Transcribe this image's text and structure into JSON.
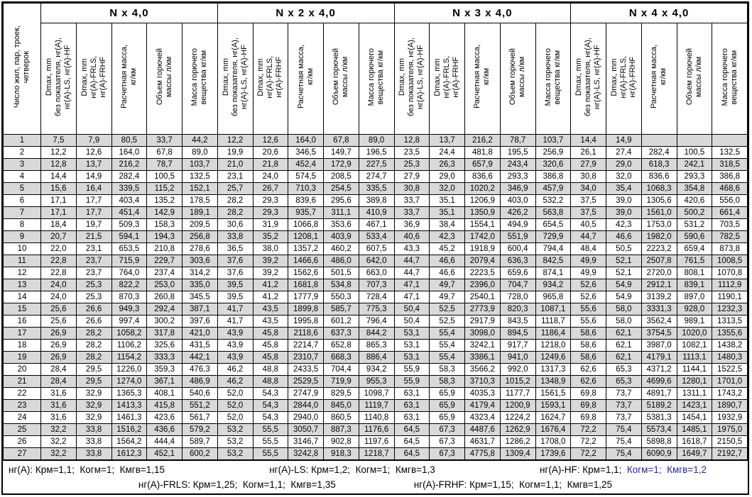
{
  "table": {
    "row_axis_label": "Число жил, пар, троек,\nчетверок",
    "groups": [
      "N x 4,0",
      "N x 2 x 4,0",
      "N x 3 x 4,0",
      "N x 4 x 4,0"
    ],
    "subcolumns": [
      "Dmax, mm\nбез показателя, нг(A),\nнг(A)-LS, нг(A)-HF",
      "Dmax, mm\nнг(A)-FRLS,\nнг(A)-FRHF",
      "Расчетная масса,\nкг/км",
      "Объем горючей\nмассы л/км",
      "Масса горючего\nвещества кг/км"
    ],
    "rows": [
      {
        "n": "1",
        "values": [
          "7,5",
          "7,9",
          "80,5",
          "33,7",
          "44,2",
          "12,2",
          "12,6",
          "164,0",
          "67,8",
          "89,0",
          "12,8",
          "13,7",
          "216,2",
          "78,7",
          "103,7",
          "14,4",
          "14,9",
          "",
          "",
          ""
        ]
      },
      {
        "n": "2",
        "values": [
          "12,2",
          "12,6",
          "164,0",
          "67,8",
          "89,0",
          "19,9",
          "20,6",
          "346,5",
          "149,7",
          "196,5",
          "23,5",
          "24,4",
          "481,8",
          "195,5",
          "256,9",
          "26,1",
          "27,4",
          "282,4",
          "100,5",
          "132,5"
        ]
      },
      {
        "n": "3",
        "values": [
          "12,8",
          "13,7",
          "216,2",
          "78,7",
          "103,7",
          "21,0",
          "21,8",
          "452,4",
          "172,9",
          "227,5",
          "25,3",
          "26,3",
          "657,9",
          "243,4",
          "320,6",
          "27,9",
          "29,0",
          "618,3",
          "242,1",
          "318,5"
        ]
      },
      {
        "n": "4",
        "values": [
          "14,4",
          "14,9",
          "282,4",
          "100,5",
          "132,5",
          "23,1",
          "24,0",
          "574,5",
          "208,5",
          "274,7",
          "27,9",
          "29,0",
          "836,6",
          "293,3",
          "386,8",
          "30,8",
          "32,0",
          "836,6",
          "293,3",
          "386,8"
        ]
      },
      {
        "n": "5",
        "values": [
          "15,6",
          "16,4",
          "339,5",
          "115,2",
          "152,1",
          "25,7",
          "26,7",
          "710,3",
          "254,5",
          "335,5",
          "30,8",
          "32,0",
          "1020,2",
          "346,9",
          "457,9",
          "34,0",
          "35,4",
          "1068,3",
          "354,8",
          "468,6"
        ]
      },
      {
        "n": "6",
        "values": [
          "17,1",
          "17,7",
          "403,4",
          "135,2",
          "178,5",
          "28,2",
          "29,3",
          "839,6",
          "295,6",
          "389,8",
          "33,7",
          "35,1",
          "1206,9",
          "403,0",
          "532,2",
          "37,5",
          "39,0",
          "1305,6",
          "420,6",
          "556,0"
        ]
      },
      {
        "n": "7",
        "values": [
          "17,1",
          "17,7",
          "451,4",
          "142,9",
          "189,1",
          "28,2",
          "29,3",
          "935,7",
          "311,1",
          "410,9",
          "33,7",
          "35,1",
          "1350,9",
          "426,2",
          "563,8",
          "37,5",
          "39,0",
          "1561,0",
          "500,2",
          "661,4"
        ]
      },
      {
        "n": "8",
        "values": [
          "18,4",
          "19,7",
          "509,3",
          "158,3",
          "209,5",
          "30,6",
          "31,9",
          "1066,8",
          "353,6",
          "467,1",
          "36,9",
          "38,4",
          "1554,1",
          "494,9",
          "654,5",
          "40,5",
          "42,3",
          "1753,0",
          "531,2",
          "703,5"
        ]
      },
      {
        "n": "9",
        "values": [
          "20,7",
          "21,5",
          "594,1",
          "194,3",
          "256,8",
          "33,8",
          "35,2",
          "1208,1",
          "403,9",
          "533,4",
          "40,6",
          "42,3",
          "1742,0",
          "551,9",
          "729,9",
          "44,7",
          "46,6",
          "1982,0",
          "590,6",
          "782,5"
        ]
      },
      {
        "n": "10",
        "values": [
          "22,0",
          "23,1",
          "653,5",
          "210,8",
          "278,6",
          "36,5",
          "38,0",
          "1357,2",
          "460,2",
          "607,5",
          "43,3",
          "45,2",
          "1918,9",
          "600,4",
          "794,4",
          "48,4",
          "50,5",
          "2223,2",
          "659,4",
          "873,8"
        ]
      },
      {
        "n": "11",
        "values": [
          "22,8",
          "23,7",
          "715,9",
          "229,7",
          "303,6",
          "37,6",
          "39,2",
          "1466,6",
          "486,0",
          "642,0",
          "44,7",
          "46,6",
          "2079,4",
          "636,3",
          "842,5",
          "49,9",
          "52,1",
          "2507,8",
          "761,5",
          "1008,5"
        ]
      },
      {
        "n": "12",
        "values": [
          "22,8",
          "23,7",
          "764,0",
          "237,4",
          "314,2",
          "37,6",
          "39,2",
          "1562,6",
          "501,5",
          "663,0",
          "44,7",
          "46,6",
          "2223,5",
          "659,6",
          "874,1",
          "49,9",
          "52,1",
          "2720,0",
          "808,1",
          "1070,8"
        ]
      },
      {
        "n": "13",
        "values": [
          "24,0",
          "25,3",
          "822,2",
          "253,0",
          "335,0",
          "39,5",
          "41,2",
          "1681,8",
          "534,8",
          "707,3",
          "47,1",
          "49,7",
          "2396,0",
          "704,7",
          "934,2",
          "52,6",
          "54,9",
          "2912,1",
          "839,1",
          "1112,9"
        ]
      },
      {
        "n": "14",
        "values": [
          "24,0",
          "25,3",
          "870,3",
          "260,8",
          "345,5",
          "39,5",
          "41,2",
          "1777,9",
          "550,3",
          "728,4",
          "47,1",
          "49,7",
          "2540,1",
          "728,0",
          "965,8",
          "52,6",
          "54,9",
          "3139,2",
          "897,0",
          "1190,1"
        ]
      },
      {
        "n": "15",
        "values": [
          "25,6",
          "26,6",
          "949,3",
          "292,4",
          "387,1",
          "41,7",
          "43,5",
          "1899,8",
          "585,7",
          "775,3",
          "50,4",
          "52,5",
          "2773,9",
          "820,3",
          "1087,1",
          "55,6",
          "58,0",
          "3331,3",
          "928,0",
          "1232,3"
        ]
      },
      {
        "n": "16",
        "values": [
          "25,6",
          "26,6",
          "997,4",
          "300,2",
          "397,6",
          "41,7",
          "43,5",
          "1995,8",
          "601,2",
          "796,4",
          "50,4",
          "52,5",
          "2917,9",
          "843,5",
          "1118,7",
          "55,6",
          "58,0",
          "3562,4",
          "989,1",
          "1313,5"
        ]
      },
      {
        "n": "17",
        "values": [
          "26,9",
          "28,2",
          "1058,2",
          "317,8",
          "421,0",
          "43,9",
          "45,8",
          "2118,6",
          "637,3",
          "844,2",
          "53,1",
          "55,4",
          "3098,0",
          "894,5",
          "1186,4",
          "58,6",
          "62,1",
          "3754,5",
          "1020,0",
          "1355,6"
        ]
      },
      {
        "n": "18",
        "values": [
          "26,9",
          "28,2",
          "1106,2",
          "325,6",
          "431,5",
          "43,9",
          "45,8",
          "2214,7",
          "652,8",
          "865,3",
          "53,1",
          "55,4",
          "3242,1",
          "917,7",
          "1218,0",
          "58,6",
          "62,1",
          "3987,0",
          "1082,1",
          "1438,2"
        ]
      },
      {
        "n": "19",
        "values": [
          "26,9",
          "28,2",
          "1154,2",
          "333,3",
          "442,1",
          "43,9",
          "45,8",
          "2310,7",
          "668,3",
          "886,4",
          "53,1",
          "55,4",
          "3386,1",
          "941,0",
          "1249,6",
          "58,6",
          "62,1",
          "4179,1",
          "1113,1",
          "1480,3"
        ]
      },
      {
        "n": "20",
        "values": [
          "28,4",
          "29,5",
          "1226,0",
          "359,3",
          "476,3",
          "46,2",
          "48,8",
          "2433,5",
          "704,4",
          "934,2",
          "55,9",
          "58,3",
          "3566,2",
          "992,0",
          "1317,3",
          "62,6",
          "65,3",
          "4371,2",
          "1144,1",
          "1522,5"
        ]
      },
      {
        "n": "21",
        "values": [
          "28,4",
          "29,5",
          "1274,0",
          "367,1",
          "486,9",
          "46,2",
          "48,8",
          "2529,5",
          "719,9",
          "955,3",
          "55,9",
          "58,3",
          "3710,3",
          "1015,2",
          "1348,9",
          "62,6",
          "65,3",
          "4699,6",
          "1280,1",
          "1701,0"
        ]
      },
      {
        "n": "22",
        "values": [
          "31,6",
          "32,9",
          "1365,3",
          "408,1",
          "540,6",
          "52,0",
          "54,3",
          "2747,9",
          "829,5",
          "1098,7",
          "63,1",
          "65,9",
          "4035,3",
          "1177,7",
          "1561,5",
          "69,8",
          "73,7",
          "4891,7",
          "1311,1",
          "1743,2"
        ]
      },
      {
        "n": "23",
        "values": [
          "31,6",
          "32,9",
          "1413,3",
          "415,8",
          "551,2",
          "52,0",
          "54,3",
          "2844,0",
          "845,0",
          "1119,7",
          "63,1",
          "65,9",
          "4179,4",
          "1200,9",
          "1593,1",
          "69,8",
          "73,7",
          "5189,2",
          "1423,1",
          "1890,7"
        ]
      },
      {
        "n": "24",
        "values": [
          "31,6",
          "32,9",
          "1461,3",
          "423,6",
          "561,7",
          "52,0",
          "54,3",
          "2940,0",
          "860,5",
          "1140,8",
          "63,1",
          "65,9",
          "4323,4",
          "1224,2",
          "1624,7",
          "69,8",
          "73,7",
          "5381,3",
          "1454,1",
          "1932,9"
        ]
      },
      {
        "n": "25",
        "values": [
          "32,2",
          "33,8",
          "1516,2",
          "436,6",
          "579,2",
          "53,2",
          "55,5",
          "3050,7",
          "887,3",
          "1176,6",
          "64,5",
          "67,3",
          "4487,6",
          "1262,9",
          "1676,4",
          "72,2",
          "75,4",
          "5573,4",
          "1485,1",
          "1975,0"
        ]
      },
      {
        "n": "26",
        "values": [
          "32,2",
          "33,8",
          "1564,2",
          "444,4",
          "589,7",
          "53,2",
          "55,5",
          "3146,7",
          "902,8",
          "1197,6",
          "64,5",
          "67,3",
          "4631,7",
          "1286,2",
          "1708,0",
          "72,2",
          "75,4",
          "5898,8",
          "1618,7",
          "2150,5"
        ]
      },
      {
        "n": "27",
        "values": [
          "32,2",
          "33,8",
          "1612,3",
          "452,1",
          "600,2",
          "53,2",
          "55,5",
          "3242,8",
          "918,3",
          "1218,7",
          "64,5",
          "67,3",
          "4775,8",
          "1309,4",
          "1739,6",
          "72,2",
          "75,4",
          "6090,9",
          "1649,7",
          "2192,7"
        ]
      }
    ]
  },
  "footer": {
    "line1": [
      [
        {
          "t": "нг(A): Крм=1,1;  Когм=1;  Кмгв=1,15"
        }
      ],
      [
        {
          "t": "нг(A)-LS: Крм=1,2;  Когм=1;  Кмгв=1,3"
        }
      ],
      [
        {
          "t": "нг(A)-HF: Крм=1,1;  "
        },
        {
          "t": "Когм=1;  Кмгв=1,2",
          "c": "blue"
        }
      ]
    ],
    "line2": [
      [
        {
          "t": "нг(A)-FRLS: Крм=1,25;  Когм=1,1;  Кмгв=1,35"
        }
      ],
      [
        {
          "t": "нг(A)-FRHF: Крм=1,15;  Когм=1,1;  Кмгв=1,25"
        }
      ]
    ]
  },
  "colors": {
    "row_alt": "#d9d9d9",
    "border": "#000000",
    "blue_text": "#2323a0"
  }
}
